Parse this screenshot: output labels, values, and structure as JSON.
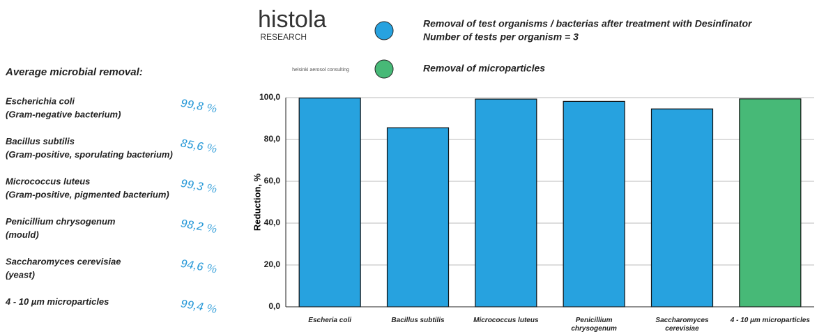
{
  "logos": [
    "histola",
    "RESEARCH",
    "helsinki aerosol consulting"
  ],
  "panel": {
    "title": "Average microbial removal:",
    "items": [
      {
        "name": "Escherichia coli",
        "note": "(Gram-negative bacterium)",
        "label": "99,8 %"
      },
      {
        "name": "Bacillus subtilis",
        "note": "(Gram-positive, sporulating bacterium)",
        "label": "85,6 %"
      },
      {
        "name": "Micrococcus luteus",
        "note": "(Gram-positive, pigmented bacterium)",
        "label": "99,3 %"
      },
      {
        "name": "Penicillium chrysogenum",
        "note": "(mould)",
        "label": "98,2 %"
      },
      {
        "name": "Saccharomyces cerevisiae",
        "note": "(yeast)",
        "label": "94,6 %"
      },
      {
        "name": "4 - 10 µm microparticles",
        "label": "99,4 %"
      }
    ]
  },
  "chart_data": {
    "type": "bar",
    "legend_note": "Number of tests per organism = 3",
    "y_label": "Reduction, %",
    "categories": [
      "Escheria coli",
      "Bacillus subtilis",
      "Micrococcus luteus",
      "Penicillium chrysogenum",
      "Saccharomyces cerevisiae",
      "4 - 10 µm microparticles"
    ],
    "series": [
      {
        "name": "Removal of test organisms / bacterias after treatment with Desinfinator",
        "color": "#27a2df",
        "values": [
          99.8,
          85.6,
          99.3,
          98.2,
          94.6,
          null
        ]
      },
      {
        "name": "Removal of microparticles",
        "color": "#47b977",
        "values": [
          null,
          null,
          null,
          null,
          null,
          99.4
        ]
      }
    ],
    "ylim": [
      0,
      100
    ],
    "yticks": [
      {
        "value": 0,
        "label": "0,0"
      },
      {
        "value": 20,
        "label": "20,0"
      },
      {
        "value": 40,
        "label": "40,0"
      },
      {
        "value": 60,
        "label": "60,0"
      },
      {
        "value": 80,
        "label": "80,0"
      },
      {
        "value": 100,
        "label": "100,0"
      }
    ],
    "grid": true
  }
}
